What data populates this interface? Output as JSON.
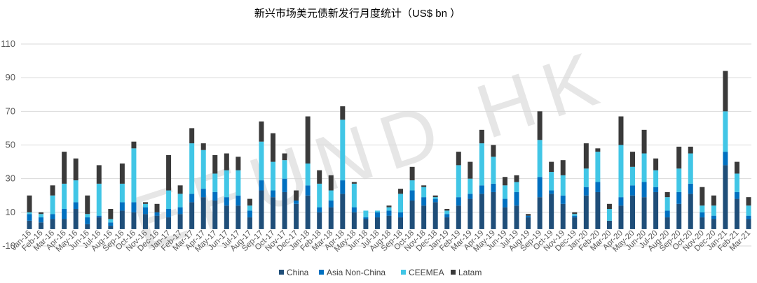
{
  "chart_data": {
    "type": "bar",
    "stacked": true,
    "title": "新兴市场美元债新发行月度统计（US$ bn ）",
    "xlabel": "",
    "ylabel": "",
    "ylim": [
      -10,
      110
    ],
    "yticks": [
      -10,
      10,
      30,
      50,
      70,
      90,
      110
    ],
    "grid": true,
    "legend_position": "bottom",
    "watermark": "EFUND HK",
    "categories": [
      "Jan-16",
      "Feb-16",
      "Mar-16",
      "Apr-16",
      "May-16",
      "Jun-16",
      "Jul-16",
      "Aug-16",
      "Sep-16",
      "Oct-16",
      "Nov-16",
      "Dec-16",
      "Jan-17",
      "Feb-17",
      "Mar-17",
      "Apr-17",
      "May-17",
      "Jun-17",
      "Jul-17",
      "Aug-17",
      "Sep-17",
      "Oct-17",
      "Nov-17",
      "Dec-17",
      "Jan-18",
      "Feb-18",
      "Mar-18",
      "Apr-18",
      "May-18",
      "Jun-18",
      "Jul-18",
      "Aug-18",
      "Sep-18",
      "Oct-18",
      "Nov-18",
      "Dec-18",
      "Jan-19",
      "Feb-19",
      "Mar-19",
      "Apr-19",
      "May-19",
      "Jun-19",
      "Jul-19",
      "Aug-19",
      "Sep-19",
      "Oct-19",
      "Nov-19",
      "Dec-19",
      "Jan-20",
      "Feb-20",
      "Mar-20",
      "Apr-20",
      "May-20",
      "Jun-20",
      "Jul-20",
      "Aug-20",
      "Sep-20",
      "Oct-20",
      "Nov-20",
      "Dec-20",
      "Jan-21",
      "Feb-21",
      "Mar-21"
    ],
    "series": [
      {
        "name": "China",
        "color": "#1f4e79",
        "values": [
          5,
          4,
          6,
          6,
          12,
          3,
          7,
          2,
          11,
          10,
          9,
          8,
          7,
          9,
          16,
          19,
          17,
          14,
          14,
          7,
          23,
          19,
          22,
          15,
          20,
          10,
          13,
          21,
          10,
          6,
          7,
          8,
          7,
          17,
          14,
          16,
          7,
          14,
          18,
          21,
          22,
          13,
          14,
          7,
          19,
          21,
          15,
          7,
          20,
          22,
          5,
          14,
          20,
          19,
          22,
          7,
          15,
          21,
          7,
          6,
          38,
          18,
          6
        ]
      },
      {
        "name": "Asia Non-China",
        "color": "#0070c0",
        "values": [
          4,
          3,
          3,
          6,
          4,
          4,
          1,
          2,
          5,
          6,
          4,
          2,
          5,
          4,
          5,
          5,
          5,
          5,
          6,
          4,
          6,
          4,
          8,
          2,
          6,
          3,
          4,
          8,
          3,
          1,
          3,
          3,
          3,
          6,
          5,
          2,
          2,
          5,
          3,
          5,
          5,
          5,
          8,
          1,
          12,
          2,
          5,
          1,
          5,
          6,
          0,
          5,
          6,
          9,
          3,
          4,
          7,
          6,
          3,
          2,
          8,
          4,
          2
        ]
      },
      {
        "name": "CEEMEA",
        "color": "#41c6e6",
        "values": [
          1,
          2,
          11,
          15,
          13,
          2,
          19,
          2,
          11,
          32,
          2,
          0,
          11,
          8,
          30,
          23,
          11,
          16,
          15,
          3,
          23,
          17,
          11,
          0,
          13,
          14,
          6,
          36,
          14,
          4,
          1,
          2,
          11,
          6,
          6,
          1,
          2,
          19,
          9,
          25,
          16,
          8,
          6,
          0,
          22,
          11,
          12,
          1,
          11,
          18,
          7,
          31,
          11,
          17,
          10,
          8,
          14,
          18,
          4,
          6,
          24,
          11,
          6
        ]
      },
      {
        "name": "Latam",
        "color": "#3a3a3a",
        "values": [
          10,
          1,
          6,
          19,
          13,
          11,
          11,
          6,
          12,
          4,
          1,
          5,
          21,
          5,
          9,
          4,
          11,
          10,
          8,
          4,
          12,
          17,
          4,
          6,
          28,
          8,
          9,
          8,
          1,
          0,
          0,
          1,
          3,
          8,
          1,
          1,
          1,
          8,
          10,
          8,
          7,
          5,
          4,
          1,
          17,
          6,
          9,
          1,
          15,
          2,
          3,
          17,
          9,
          14,
          7,
          3,
          13,
          4,
          11,
          6,
          24,
          7,
          5
        ]
      }
    ]
  }
}
